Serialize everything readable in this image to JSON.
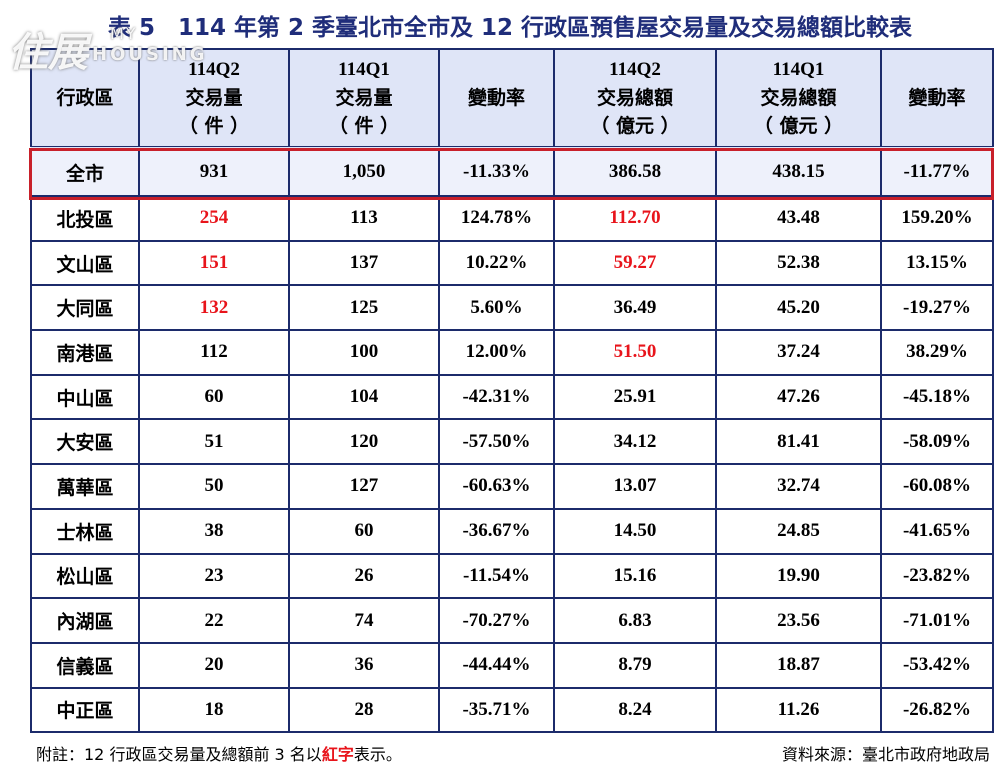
{
  "title": "表 5　114 年第 2 季臺北市全市及 12 行政區預售屋交易量及交易總額比較表",
  "logo": {
    "mark": "住展",
    "line1": "MY",
    "line2": "HOUSING"
  },
  "table": {
    "header": [
      [
        "行政區"
      ],
      [
        "114Q2",
        "交易量",
        "（ 件 ）"
      ],
      [
        "114Q1",
        "交易量",
        "（ 件 ）"
      ],
      [
        "變動率"
      ],
      [
        "114Q2",
        "交易總額",
        "（ 億元 ）"
      ],
      [
        "114Q1",
        "交易總額",
        "（ 億元 ）"
      ],
      [
        "變動率"
      ]
    ],
    "total_row": [
      "全市",
      "931",
      "1,050",
      "-11.33%",
      "386.58",
      "438.15",
      "-11.77%"
    ],
    "rows": [
      [
        "北投區",
        "254",
        "113",
        "124.78%",
        "112.70",
        "43.48",
        "159.20%"
      ],
      [
        "文山區",
        "151",
        "137",
        "10.22%",
        "59.27",
        "52.38",
        "13.15%"
      ],
      [
        "大同區",
        "132",
        "125",
        "5.60%",
        "36.49",
        "45.20",
        "-19.27%"
      ],
      [
        "南港區",
        "112",
        "100",
        "12.00%",
        "51.50",
        "37.24",
        "38.29%"
      ],
      [
        "中山區",
        "60",
        "104",
        "-42.31%",
        "25.91",
        "47.26",
        "-45.18%"
      ],
      [
        "大安區",
        "51",
        "120",
        "-57.50%",
        "34.12",
        "81.41",
        "-58.09%"
      ],
      [
        "萬華區",
        "50",
        "127",
        "-60.63%",
        "13.07",
        "32.74",
        "-60.08%"
      ],
      [
        "士林區",
        "38",
        "60",
        "-36.67%",
        "14.50",
        "24.85",
        "-41.65%"
      ],
      [
        "松山區",
        "23",
        "26",
        "-11.54%",
        "15.16",
        "19.90",
        "-23.82%"
      ],
      [
        "內湖區",
        "22",
        "74",
        "-70.27%",
        "6.83",
        "23.56",
        "-71.01%"
      ],
      [
        "信義區",
        "20",
        "36",
        "-44.44%",
        "8.79",
        "18.87",
        "-53.42%"
      ],
      [
        "中正區",
        "18",
        "28",
        "-35.71%",
        "8.24",
        "11.26",
        "-26.82%"
      ]
    ],
    "highlight_color": "#e8141b",
    "highlight_cells": [
      [
        0,
        1
      ],
      [
        0,
        4
      ],
      [
        1,
        1
      ],
      [
        1,
        4
      ],
      [
        2,
        1
      ],
      [
        3,
        4
      ]
    ]
  },
  "note": {
    "parts": [
      "附註：12 行政區交易量及總額前 3 名以",
      "紅字",
      "表示。"
    ],
    "red_part": 1
  },
  "source": "資料來源：臺北市政府地政局"
}
